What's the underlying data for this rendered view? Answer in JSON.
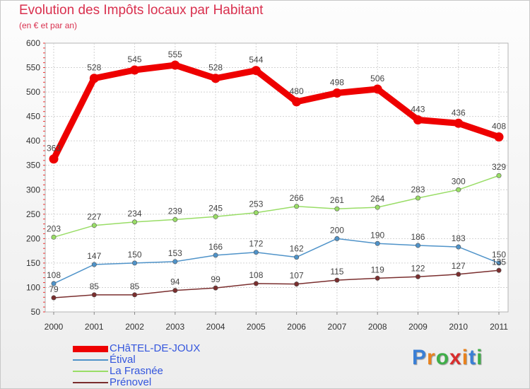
{
  "header": {
    "title": "Evolution des Impôts locaux par Habitant",
    "subtitle": "(en € et par an)"
  },
  "logo": {
    "text": "Proxiti",
    "letters": [
      "P",
      "r",
      "o",
      "x",
      "i",
      "t",
      "i"
    ],
    "colors": [
      "#3a7fd5",
      "#e8821e",
      "#3fae49",
      "#d92d2d",
      "#e8821e",
      "#3a7fd5",
      "#3fae49"
    ]
  },
  "chart_data": {
    "type": "line",
    "x": [
      "2000",
      "2001",
      "2002",
      "2003",
      "2004",
      "2005",
      "2006",
      "2007",
      "2008",
      "2009",
      "2010",
      "2011"
    ],
    "ylim": [
      50,
      600
    ],
    "yticks": [
      50,
      100,
      150,
      200,
      250,
      300,
      350,
      400,
      450,
      500,
      550,
      600
    ],
    "grid": true,
    "legend_position": "bottom-left",
    "series": [
      {
        "name": "CHâTEL-DE-JOUX",
        "color": "#ee0000",
        "labels": [
          "363",
          "528",
          "545",
          "555",
          "528",
          "544",
          "480",
          "498",
          "506",
          "443",
          "436",
          "408"
        ],
        "values": [
          363,
          528,
          545,
          555,
          528,
          544,
          480,
          498,
          506,
          443,
          436,
          408
        ]
      },
      {
        "name": "Étival",
        "color": "#4f93c9",
        "labels": [
          "108",
          "147",
          "150",
          "153",
          "166",
          "172",
          "162",
          "200",
          "190",
          "186",
          "183",
          "150"
        ],
        "values": [
          108,
          147,
          150,
          153,
          166,
          172,
          162,
          200,
          190,
          186,
          183,
          150
        ]
      },
      {
        "name": "La Frasnée",
        "color": "#99dd66",
        "labels": [
          "203",
          "227",
          "234",
          "239",
          "245",
          "253",
          "266",
          "261",
          "264",
          "283",
          "300",
          "329"
        ],
        "values": [
          203,
          227,
          234,
          239,
          245,
          253,
          266,
          261,
          264,
          283,
          300,
          329
        ]
      },
      {
        "name": "Prénovel",
        "color": "#7a2e2e",
        "labels": [
          "79",
          "85",
          "85",
          "94",
          "99",
          "108",
          "107",
          "115",
          "119",
          "122",
          "127",
          "135"
        ],
        "values": [
          79,
          85,
          85,
          94,
          99,
          108,
          107,
          115,
          119,
          122,
          127,
          135
        ]
      }
    ]
  }
}
